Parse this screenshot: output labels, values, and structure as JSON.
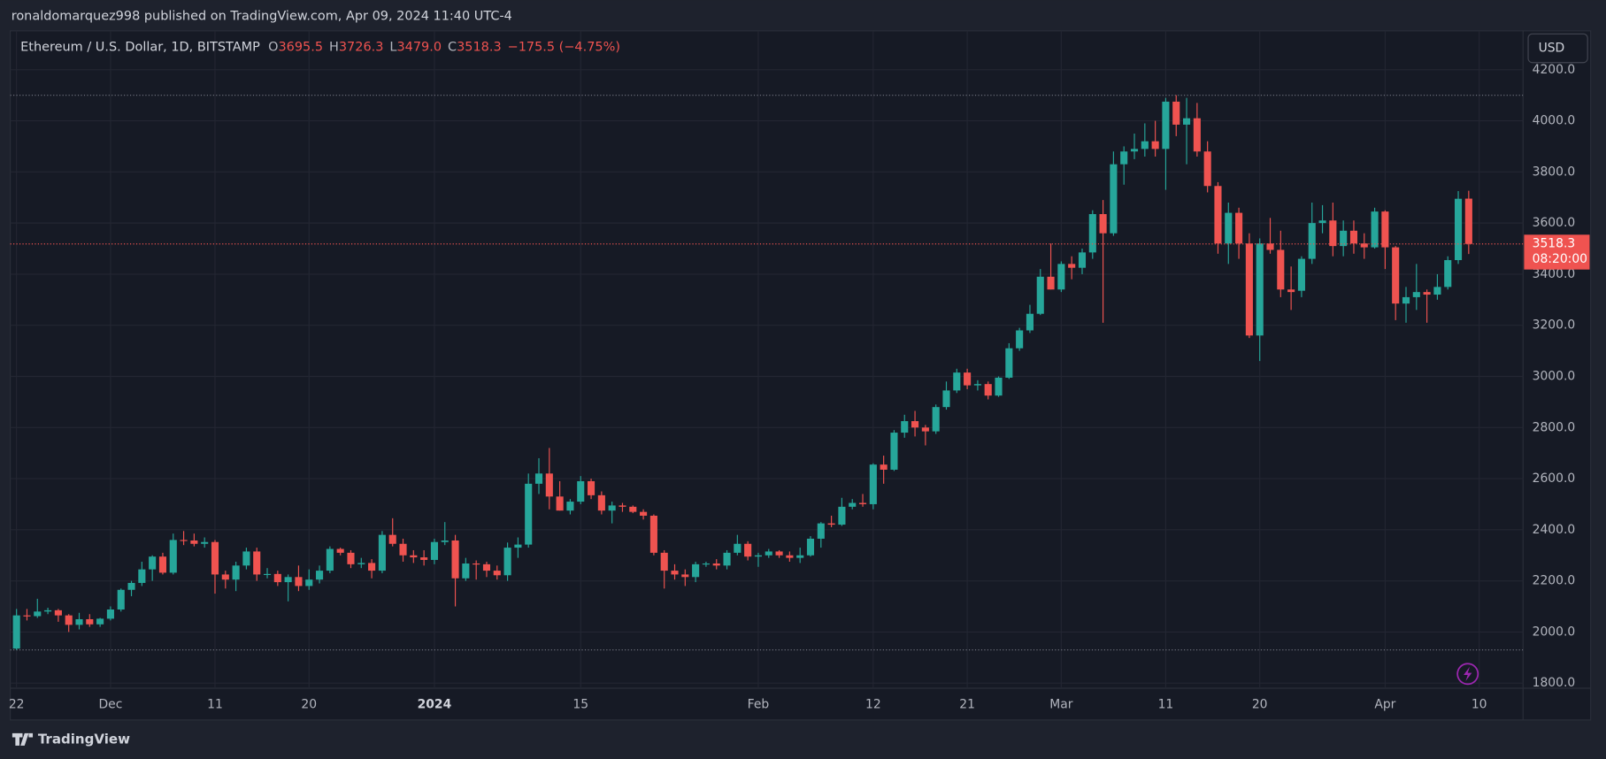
{
  "attribution": "ronaldomarquez998 published on TradingView.com, Apr 09, 2024 11:40 UTC-4",
  "footer": "TradingView",
  "currency_button": "USD",
  "chart_data": {
    "type": "candlestick",
    "title": "Ethereum / U.S. Dollar, 1D, BITSTAMP",
    "readout": [
      {
        "key": "O",
        "text": "3695.5"
      },
      {
        "key": "H",
        "text": "3726.3"
      },
      {
        "key": "L",
        "text": "3479.0"
      },
      {
        "key": "C",
        "text": "3518.3"
      }
    ],
    "change": "−175.5 (−4.75%)",
    "countdown": "08:20:00",
    "up_color": "#26a69a",
    "down_color": "#ef5350",
    "grid": true,
    "x": [
      0,
      1,
      2,
      3,
      4,
      5,
      6,
      7,
      8,
      9,
      10,
      11,
      12,
      13,
      14,
      15,
      16,
      17,
      18,
      19,
      20,
      21,
      22,
      23,
      24,
      25,
      26,
      27,
      28,
      29,
      30,
      31,
      32,
      33,
      34,
      35,
      36,
      37,
      38,
      39,
      40,
      41,
      42,
      43,
      44,
      45,
      46,
      47,
      48,
      49,
      50,
      51,
      52,
      53,
      54,
      55,
      56,
      57,
      58,
      59,
      60,
      61,
      62,
      63,
      64,
      65,
      66,
      67,
      68,
      69,
      70,
      71,
      72,
      73,
      74,
      75,
      76,
      77,
      78,
      79,
      80,
      81,
      82,
      83,
      84,
      85,
      86,
      87,
      88,
      89,
      90,
      91,
      92,
      93,
      94,
      95,
      96,
      97,
      98,
      99,
      100,
      101,
      102,
      103,
      104,
      105,
      106,
      107,
      108,
      109,
      110,
      111,
      112,
      113,
      114,
      115,
      116,
      117,
      118,
      119,
      120,
      121,
      122,
      123,
      124,
      125,
      126,
      127,
      128,
      129,
      130,
      131,
      132,
      133,
      134,
      135,
      136,
      137,
      138,
      139
    ],
    "open": [
      1935,
      2065,
      2062,
      2080,
      2085,
      2065,
      2028,
      2050,
      2030,
      2052,
      2088,
      2165,
      2192,
      2245,
      2295,
      2232,
      2360,
      2358,
      2345,
      2352,
      2225,
      2205,
      2260,
      2315,
      2225,
      2227,
      2195,
      2215,
      2180,
      2205,
      2240,
      2325,
      2310,
      2265,
      2270,
      2240,
      2380,
      2345,
      2300,
      2292,
      2282,
      2352,
      2358,
      2210,
      2268,
      2265,
      2240,
      2222,
      2330,
      2342,
      2580,
      2620,
      2530,
      2475,
      2510,
      2590,
      2535,
      2475,
      2495,
      2490,
      2470,
      2455,
      2310,
      2240,
      2225,
      2215,
      2265,
      2268,
      2260,
      2310,
      2345,
      2295,
      2300,
      2315,
      2300,
      2290,
      2300,
      2365,
      2425,
      2420,
      2490,
      2505,
      2500,
      2655,
      2635,
      2780,
      2825,
      2800,
      2785,
      2880,
      2945,
      3015,
      2965,
      2970,
      2925,
      2995,
      3110,
      3180,
      3245,
      3390,
      3340,
      3440,
      3425,
      3485,
      3635,
      3560,
      3830,
      3880,
      3890,
      3920,
      3890,
      4075,
      3985,
      4010,
      3880,
      3745,
      3520,
      3640,
      3520,
      3160,
      3520,
      3495,
      3340,
      3335,
      3460,
      3600,
      3610,
      3510,
      3570,
      3520,
      3505,
      3645,
      3505,
      3285,
      3310,
      3330,
      3320,
      3350,
      3455,
      3695.5
    ],
    "high": [
      2090,
      2090,
      2130,
      2095,
      2090,
      2070,
      2075,
      2070,
      2055,
      2100,
      2170,
      2200,
      2275,
      2300,
      2310,
      2385,
      2395,
      2385,
      2370,
      2360,
      2240,
      2275,
      2330,
      2330,
      2250,
      2240,
      2225,
      2260,
      2245,
      2260,
      2335,
      2330,
      2320,
      2290,
      2285,
      2395,
      2445,
      2365,
      2320,
      2320,
      2365,
      2430,
      2380,
      2290,
      2280,
      2275,
      2260,
      2350,
      2370,
      2620,
      2680,
      2720,
      2590,
      2520,
      2610,
      2600,
      2550,
      2510,
      2505,
      2495,
      2480,
      2460,
      2320,
      2265,
      2245,
      2275,
      2275,
      2285,
      2320,
      2380,
      2355,
      2310,
      2325,
      2320,
      2315,
      2330,
      2375,
      2430,
      2455,
      2525,
      2520,
      2540,
      2660,
      2690,
      2790,
      2850,
      2865,
      2810,
      2890,
      2980,
      3030,
      3030,
      2985,
      2980,
      3000,
      3130,
      3190,
      3280,
      3420,
      3520,
      3450,
      3470,
      3500,
      3650,
      3690,
      3880,
      3900,
      3950,
      3990,
      4000,
      4090,
      4100,
      4090,
      4070,
      3920,
      3760,
      3680,
      3660,
      3560,
      3540,
      3620,
      3570,
      3430,
      3470,
      3680,
      3670,
      3680,
      3610,
      3610,
      3560,
      3660,
      3650,
      3510,
      3350,
      3440,
      3340,
      3400,
      3470,
      3725,
      3726.3
    ],
    "low": [
      1930,
      2045,
      2055,
      2070,
      2040,
      2000,
      2010,
      2020,
      2020,
      2045,
      2080,
      2140,
      2180,
      2200,
      2225,
      2225,
      2340,
      2335,
      2330,
      2150,
      2170,
      2160,
      2245,
      2200,
      2210,
      2180,
      2120,
      2160,
      2165,
      2190,
      2230,
      2300,
      2250,
      2250,
      2210,
      2230,
      2335,
      2275,
      2270,
      2260,
      2265,
      2340,
      2100,
      2200,
      2205,
      2215,
      2205,
      2200,
      2290,
      2330,
      2540,
      2480,
      2475,
      2460,
      2500,
      2520,
      2460,
      2425,
      2470,
      2465,
      2440,
      2300,
      2170,
      2205,
      2180,
      2195,
      2255,
      2245,
      2245,
      2300,
      2280,
      2255,
      2290,
      2290,
      2275,
      2270,
      2295,
      2330,
      2410,
      2415,
      2480,
      2490,
      2480,
      2580,
      2630,
      2760,
      2765,
      2730,
      2775,
      2870,
      2935,
      2950,
      2945,
      2910,
      2920,
      2990,
      3100,
      3170,
      3240,
      3340,
      3330,
      3380,
      3400,
      3460,
      3210,
      3550,
      3750,
      3850,
      3860,
      3860,
      3730,
      3940,
      3830,
      3860,
      3720,
      3480,
      3440,
      3460,
      3150,
      3060,
      3480,
      3310,
      3260,
      3310,
      3440,
      3560,
      3470,
      3470,
      3480,
      3460,
      3500,
      3420,
      3220,
      3210,
      3260,
      3210,
      3300,
      3340,
      3440,
      3479.0
    ],
    "close": [
      2065,
      2062,
      2080,
      2085,
      2065,
      2028,
      2050,
      2030,
      2052,
      2088,
      2165,
      2192,
      2245,
      2295,
      2232,
      2360,
      2358,
      2345,
      2352,
      2225,
      2205,
      2260,
      2315,
      2225,
      2227,
      2195,
      2215,
      2180,
      2205,
      2240,
      2325,
      2310,
      2265,
      2270,
      2240,
      2380,
      2345,
      2300,
      2292,
      2282,
      2352,
      2358,
      2210,
      2268,
      2265,
      2240,
      2222,
      2330,
      2342,
      2580,
      2620,
      2530,
      2475,
      2510,
      2590,
      2535,
      2475,
      2495,
      2490,
      2470,
      2455,
      2310,
      2240,
      2225,
      2215,
      2265,
      2268,
      2260,
      2310,
      2345,
      2295,
      2300,
      2315,
      2300,
      2290,
      2300,
      2365,
      2425,
      2420,
      2490,
      2505,
      2500,
      2655,
      2635,
      2780,
      2825,
      2800,
      2785,
      2880,
      2945,
      3015,
      2965,
      2970,
      2925,
      2995,
      3110,
      3180,
      3245,
      3390,
      3340,
      3440,
      3425,
      3485,
      3635,
      3560,
      3830,
      3880,
      3890,
      3920,
      3890,
      4075,
      3985,
      4010,
      3880,
      3745,
      3520,
      3640,
      3520,
      3160,
      3520,
      3495,
      3340,
      3330,
      3460,
      3600,
      3610,
      3510,
      3570,
      3520,
      3505,
      3645,
      3505,
      3285,
      3310,
      3330,
      3320,
      3350,
      3455,
      3695,
      3518.3
    ],
    "xlim": [
      -0.6,
      144.2
    ],
    "xticks": [
      {
        "value": 0,
        "label": "22"
      },
      {
        "value": 9,
        "label": "Dec"
      },
      {
        "value": 19,
        "label": "11"
      },
      {
        "value": 28,
        "label": "20"
      },
      {
        "value": 40,
        "label": "2024",
        "bold": true
      },
      {
        "value": 54,
        "label": "15"
      },
      {
        "value": 71,
        "label": "Feb"
      },
      {
        "value": 82,
        "label": "12"
      },
      {
        "value": 91,
        "label": "21"
      },
      {
        "value": 100,
        "label": "Mar"
      },
      {
        "value": 110,
        "label": "11"
      },
      {
        "value": 119,
        "label": "20"
      },
      {
        "value": 131,
        "label": "Apr"
      },
      {
        "value": 140,
        "label": "10"
      }
    ],
    "ylim": [
      1780,
      4352
    ],
    "yticks": [
      {
        "value": 1800,
        "label": "1800.0"
      },
      {
        "value": 2000,
        "label": "2000.0"
      },
      {
        "value": 2200,
        "label": "2200.0"
      },
      {
        "value": 2400,
        "label": "2400.0"
      },
      {
        "value": 2600,
        "label": "2600.0"
      },
      {
        "value": 2800,
        "label": "2800.0"
      },
      {
        "value": 3000,
        "label": "3000.0"
      },
      {
        "value": 3200,
        "label": "3200.0"
      },
      {
        "value": 3400,
        "label": "3400.0"
      },
      {
        "value": 3600,
        "label": "3600.0"
      },
      {
        "value": 3800,
        "label": "3800.0"
      },
      {
        "value": 4000,
        "label": "4000.0"
      },
      {
        "value": 4200,
        "label": "4200.0"
      }
    ]
  }
}
